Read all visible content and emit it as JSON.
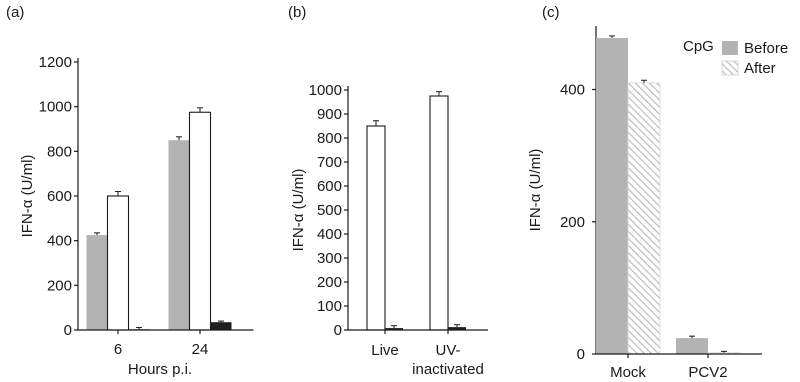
{
  "colors": {
    "gray": "#b3b3b3",
    "open": "#ffffff",
    "black": "#1f1f1f",
    "axis": "#1a1a1a",
    "hatch": "#c8c8c8"
  },
  "chart_data": [
    {
      "panel": "(a)",
      "type": "bar",
      "ylabel": "IFN-α (U/ml)",
      "xlabel": "Hours p.i.",
      "ylim": [
        0,
        1200
      ],
      "yticks": [
        0,
        200,
        400,
        600,
        800,
        1000,
        1200
      ],
      "categories": [
        "6",
        "24"
      ],
      "series": [
        {
          "style": "gray",
          "values": [
            425,
            850
          ],
          "errors": [
            10,
            15
          ]
        },
        {
          "style": "open",
          "values": [
            600,
            975
          ],
          "errors": [
            20,
            20
          ]
        },
        {
          "style": "black",
          "values": [
            3,
            35
          ],
          "errors": [
            8,
            5
          ]
        }
      ],
      "grid": false,
      "legend": "none"
    },
    {
      "panel": "(b)",
      "type": "bar",
      "ylabel": "IFN-α (U/ml)",
      "xlabel": "",
      "ylim": [
        0,
        1000
      ],
      "yticks": [
        0,
        100,
        200,
        300,
        400,
        500,
        600,
        700,
        800,
        900,
        1000
      ],
      "categories": [
        "Live",
        "UV-\ninactivated"
      ],
      "category_lines": [
        [
          "Live"
        ],
        [
          "UV-",
          "inactivated"
        ]
      ],
      "series": [
        {
          "style": "open",
          "values": [
            850,
            975
          ],
          "errors": [
            22,
            18
          ]
        },
        {
          "style": "black",
          "values": [
            8,
            12
          ],
          "errors": [
            10,
            10
          ]
        }
      ],
      "grid": false,
      "legend": "none"
    },
    {
      "panel": "(c)",
      "type": "bar",
      "ylabel": "IFN-α (U/ml)",
      "xlabel": "",
      "ylim": [
        0,
        490
      ],
      "yticks": [
        0,
        200,
        400
      ],
      "categories": [
        "Mock",
        "PCV2"
      ],
      "legend_title": "CpG",
      "series": [
        {
          "name": "Before",
          "style": "gray",
          "values": [
            478,
            24
          ],
          "errors": [
            3,
            3
          ]
        },
        {
          "name": "After",
          "style": "hatch",
          "values": [
            410,
            2
          ],
          "errors": [
            4,
            2
          ]
        }
      ],
      "grid": false,
      "legend": "top-right"
    }
  ]
}
